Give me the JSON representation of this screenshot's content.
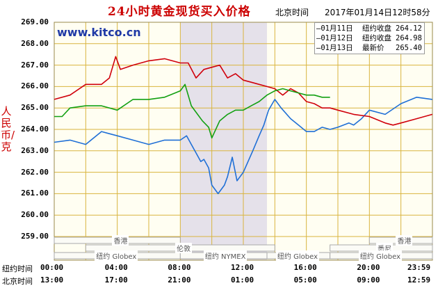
{
  "header": {
    "title": "24小时黄金现货买入价格",
    "timezone": "北京时间",
    "timestamp": "2017年01月14日12时58分",
    "site": "www.kitco.cn"
  },
  "legend": [
    {
      "name": "—01月11日",
      "type": "纽约收盘",
      "value": "264.12",
      "color": "#1f6fd6"
    },
    {
      "name": "—01月12日",
      "type": "纽约收盘",
      "value": "264.98",
      "color": "#d0000b"
    },
    {
      "name": "—01月13日",
      "type": "最新价",
      "value": "265.40",
      "color": "#12a012"
    }
  ],
  "markets": [
    {
      "label": "香港",
      "row": 0,
      "start": 0,
      "end": 8
    },
    {
      "label": "香港",
      "row": 0,
      "start": 20,
      "end": 24
    },
    {
      "label": "伦敦",
      "row": 1,
      "start": 2,
      "end": 14
    },
    {
      "label": "悉尼",
      "row": 1,
      "start": 17.5,
      "end": 24
    },
    {
      "label": "纽约 Globex",
      "row": 2,
      "start": 0,
      "end": 8
    },
    {
      "label": "纽约 NYMEX",
      "row": 2,
      "start": 8,
      "end": 13.5
    },
    {
      "label": "纽约 Globex",
      "row": 2,
      "start": 13.5,
      "end": 17.5
    },
    {
      "label": "纽约 Globex",
      "row": 2,
      "start": 17.5,
      "end": 24
    }
  ],
  "time_rows": {
    "ny_label": "纽约时间",
    "bj_label": "北京时间",
    "ny_times": [
      "00:00",
      "04:00",
      "08:00",
      "12:00",
      "16:00",
      "20:00",
      "23:59"
    ],
    "bj_times": [
      "13:00",
      "17:00",
      "21:00",
      "01:00",
      "05:00",
      "09:00",
      "12:59"
    ]
  },
  "chart_data": {
    "type": "line",
    "title": "24小时黄金现货买入价格",
    "ylabel": "人民币/克",
    "xlabel": "纽约时间",
    "ylim": [
      259,
      269
    ],
    "xlim": [
      0,
      24
    ],
    "yticks": [
      "259.00",
      "260.00",
      "261.00",
      "262.00",
      "263.00",
      "264.00",
      "265.00",
      "266.00",
      "267.00",
      "268.00",
      "269.00"
    ],
    "shaded_region": [
      8,
      13.5
    ],
    "grid": true,
    "series": [
      {
        "name": "01月11日",
        "color": "#1f6fd6",
        "points": [
          [
            0,
            263.4
          ],
          [
            1,
            263.5
          ],
          [
            2,
            263.3
          ],
          [
            3,
            263.9
          ],
          [
            3.5,
            263.8
          ],
          [
            4,
            263.7
          ],
          [
            5,
            263.5
          ],
          [
            6,
            263.3
          ],
          [
            7,
            263.5
          ],
          [
            8,
            263.5
          ],
          [
            8.4,
            263.7
          ],
          [
            8.7,
            263.3
          ],
          [
            9,
            262.9
          ],
          [
            9.3,
            262.5
          ],
          [
            9.5,
            262.6
          ],
          [
            9.8,
            262.2
          ],
          [
            10,
            261.4
          ],
          [
            10.4,
            261.0
          ],
          [
            10.8,
            261.4
          ],
          [
            11,
            261.8
          ],
          [
            11.3,
            262.7
          ],
          [
            11.6,
            261.6
          ],
          [
            12,
            262.0
          ],
          [
            12.3,
            262.5
          ],
          [
            12.6,
            263.0
          ],
          [
            13,
            263.7
          ],
          [
            13.3,
            264.2
          ],
          [
            13.6,
            264.9
          ],
          [
            14,
            265.4
          ],
          [
            14.4,
            265.0
          ],
          [
            15,
            264.5
          ],
          [
            15.5,
            264.2
          ],
          [
            16,
            263.9
          ],
          [
            16.5,
            263.9
          ],
          [
            17,
            264.1
          ],
          [
            17.5,
            264.0
          ],
          [
            18,
            264.1
          ],
          [
            18.7,
            264.3
          ],
          [
            19,
            264.2
          ],
          [
            19.5,
            264.5
          ],
          [
            20,
            264.9
          ],
          [
            21,
            264.7
          ],
          [
            22,
            265.2
          ],
          [
            23,
            265.5
          ],
          [
            23.99,
            265.4
          ]
        ]
      },
      {
        "name": "01月12日",
        "color": "#d0000b",
        "points": [
          [
            0,
            265.4
          ],
          [
            1,
            265.6
          ],
          [
            2,
            266.1
          ],
          [
            3,
            266.1
          ],
          [
            3.5,
            266.4
          ],
          [
            3.9,
            267.4
          ],
          [
            4.2,
            266.8
          ],
          [
            5,
            267.0
          ],
          [
            6,
            267.2
          ],
          [
            7,
            267.3
          ],
          [
            8,
            267.1
          ],
          [
            8.5,
            267.1
          ],
          [
            9,
            266.4
          ],
          [
            9.5,
            266.8
          ],
          [
            10,
            266.9
          ],
          [
            10.5,
            267.0
          ],
          [
            11,
            266.4
          ],
          [
            11.5,
            266.6
          ],
          [
            12,
            266.3
          ],
          [
            12.5,
            266.2
          ],
          [
            13,
            266.1
          ],
          [
            13.5,
            266.0
          ],
          [
            14,
            265.9
          ],
          [
            14.5,
            265.6
          ],
          [
            15,
            265.9
          ],
          [
            15.5,
            265.7
          ],
          [
            16,
            265.3
          ],
          [
            16.5,
            265.2
          ],
          [
            17,
            265.0
          ],
          [
            17.5,
            265.0
          ],
          [
            18,
            264.9
          ],
          [
            19,
            264.7
          ],
          [
            20,
            264.6
          ],
          [
            21,
            264.3
          ],
          [
            21.5,
            264.2
          ],
          [
            22,
            264.3
          ],
          [
            23,
            264.5
          ],
          [
            23.99,
            264.7
          ]
        ]
      },
      {
        "name": "01月13日",
        "color": "#12a012",
        "points": [
          [
            0,
            264.6
          ],
          [
            0.5,
            264.6
          ],
          [
            1,
            265.0
          ],
          [
            2,
            265.1
          ],
          [
            3,
            265.1
          ],
          [
            4,
            264.9
          ],
          [
            5,
            265.4
          ],
          [
            6,
            265.4
          ],
          [
            7,
            265.5
          ],
          [
            8,
            265.8
          ],
          [
            8.3,
            266.1
          ],
          [
            8.7,
            265.1
          ],
          [
            9,
            264.8
          ],
          [
            9.4,
            264.4
          ],
          [
            9.8,
            264.1
          ],
          [
            10,
            263.6
          ],
          [
            10.5,
            264.4
          ],
          [
            11,
            264.7
          ],
          [
            11.5,
            264.9
          ],
          [
            12,
            264.9
          ],
          [
            12.5,
            265.1
          ],
          [
            13,
            265.3
          ],
          [
            13.5,
            265.6
          ],
          [
            14,
            265.8
          ],
          [
            14.5,
            265.9
          ],
          [
            15,
            265.8
          ],
          [
            15.5,
            265.7
          ],
          [
            16,
            265.6
          ],
          [
            16.5,
            265.6
          ],
          [
            17,
            265.5
          ],
          [
            17.5,
            265.5
          ]
        ]
      }
    ]
  }
}
